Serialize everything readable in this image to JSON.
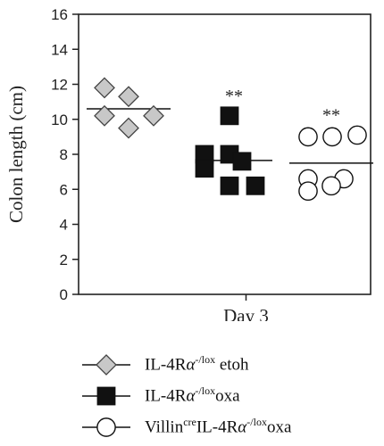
{
  "chart_data": {
    "type": "scatter",
    "title": "",
    "xlabel": "Day 3",
    "ylabel": "Colon length (cm)",
    "ylim": [
      0,
      16
    ],
    "yticks": [
      0,
      2,
      4,
      6,
      8,
      10,
      12,
      14,
      16
    ],
    "grid": false,
    "legend_position": "bottom",
    "series": [
      {
        "name": "IL-4Rα-/lox etoh",
        "marker": "diamond",
        "fill": "#c8c8c8",
        "mean": 10.6,
        "points": [
          11.8,
          11.3,
          10.2,
          10.2,
          9.5
        ]
      },
      {
        "name": "IL-4Rα-/lox oxa",
        "marker": "square",
        "fill": "#111111",
        "mean": 7.65,
        "significance": "**",
        "points": [
          10.2,
          8.0,
          8.0,
          7.6,
          7.2,
          6.2,
          6.2
        ]
      },
      {
        "name": "Villincre IL-4Rα-/lox oxa",
        "marker": "circle",
        "fill": "#ffffff",
        "mean": 7.5,
        "significance": "**",
        "points": [
          9.1,
          9.0,
          9.0,
          6.6,
          6.6,
          6.2,
          5.9
        ]
      }
    ]
  },
  "legend": {
    "items": [
      {
        "marker": "diamond",
        "base": "IL-4R",
        "greek": "α",
        "sup": "-/lox",
        "suffix": " etoh"
      },
      {
        "marker": "square",
        "base": "IL-4R",
        "greek": "α",
        "sup": "-/lox",
        "suffix": "oxa"
      },
      {
        "marker": "circle",
        "prefix": "Villin",
        "prefix_sup": "cre",
        "base": "IL-4R",
        "greek": "α",
        "sup": "-/lox",
        "suffix": "oxa"
      }
    ]
  }
}
